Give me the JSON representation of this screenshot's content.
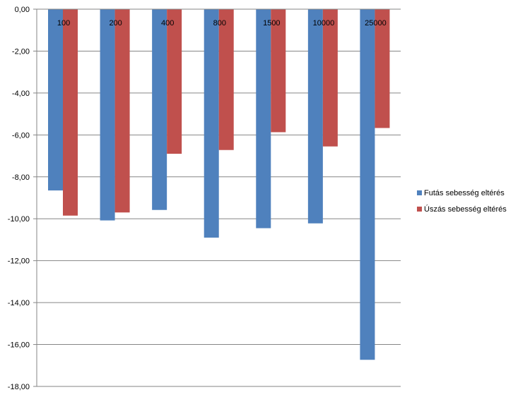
{
  "chart_data": {
    "type": "bar",
    "categories": [
      "100",
      "200",
      "400",
      "800",
      "1500",
      "10000",
      "25000"
    ],
    "series": [
      {
        "name": "Futás sebesség eltérés",
        "color": "#4F81BD",
        "values": [
          -8.65,
          -10.08,
          -9.58,
          -10.9,
          -10.45,
          -10.22,
          -16.73
        ]
      },
      {
        "name": "Úszás sebesség eltérés",
        "color": "#C0504D",
        "values": [
          -9.85,
          -9.7,
          -6.9,
          -6.72,
          -5.87,
          -6.55,
          -5.67
        ]
      }
    ],
    "yticks": [
      "0,00",
      "-2,00",
      "-4,00",
      "-6,00",
      "-8,00",
      "-10,00",
      "-12,00",
      "-14,00",
      "-16,00",
      "-18,00"
    ],
    "ylim": [
      -18,
      0
    ],
    "grid": true,
    "legend": "right"
  }
}
